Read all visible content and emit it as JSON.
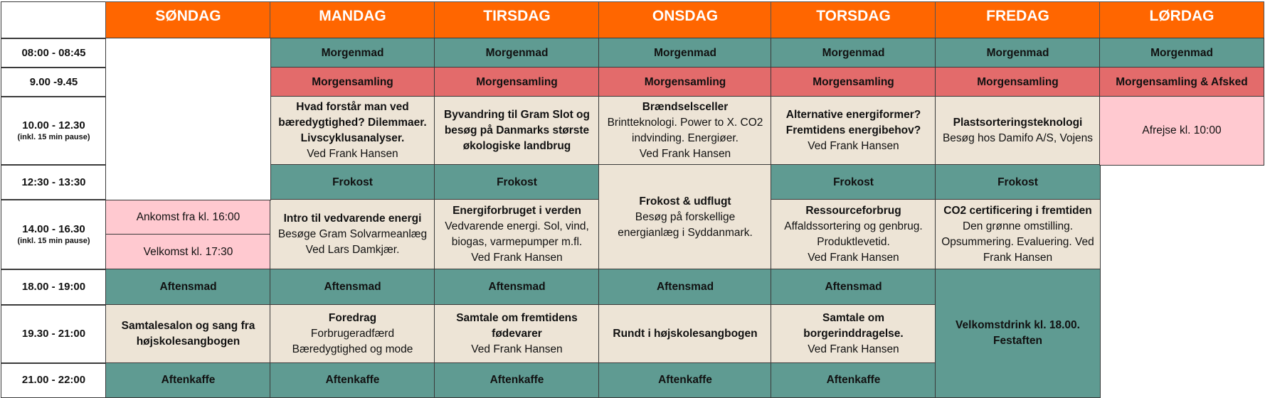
{
  "days": [
    "SØNDAG",
    "MANDAG",
    "TIRSDAG",
    "ONSDAG",
    "TORSDAG",
    "FREDAG",
    "LØRDAG"
  ],
  "times": [
    {
      "label": "08:00 - 08:45"
    },
    {
      "label": "9.00 -9.45"
    },
    {
      "label": "10.00 - 12.30",
      "note": "(inkl. 15 min pause)"
    },
    {
      "label": "12:30 - 13:30"
    },
    {
      "label": "14.00 - 16.30",
      "note": "(inkl. 15 min pause)"
    },
    {
      "label": "18.00 - 19:00"
    },
    {
      "label": "19.30 - 21:00"
    },
    {
      "label": "21.00 - 22:00"
    }
  ],
  "cells": [
    {
      "text": [
        "Ankomst fra kl. 16:00"
      ]
    },
    {
      "text": [
        "Velkomst kl. 17:30"
      ]
    },
    {
      "title": "Aftensmad"
    },
    {
      "title": "Samtalesalon og sang fra højskolesangbogen"
    },
    {
      "title": "Aftenkaffe"
    },
    {
      "title": "Morgenmad"
    },
    {
      "title": "Morgensamling"
    },
    {
      "title": "Hvad forstår man ved bæredygtighed? Dilemmaer. Livscyklusanalyser.",
      "text": [
        "Ved Frank Hansen"
      ]
    },
    {
      "title": "Frokost"
    },
    {
      "title": "Intro til vedvarende energi",
      "text": [
        "Besøge Gram Solvarmeanlæg",
        "Ved Lars Damkjær."
      ]
    },
    {
      "title": "Aftensmad"
    },
    {
      "title": "Foredrag",
      "text": [
        "Forbrugeradfærd",
        "Bæredygtighed og mode"
      ]
    },
    {
      "title": "Aftenkaffe"
    },
    {
      "title": "Morgenmad"
    },
    {
      "title": "Morgensamling"
    },
    {
      "title": "Byvandring til Gram Slot og besøg på Danmarks største økologiske landbrug"
    },
    {
      "title": "Frokost"
    },
    {
      "title": "Energiforbruget i verden",
      "text": [
        "Vedvarende energi. Sol, vind, biogas, varmepumper m.fl.",
        "Ved Frank Hansen"
      ]
    },
    {
      "title": "Aftensmad"
    },
    {
      "title": "Samtale om fremtidens fødevarer",
      "text": [
        "Ved Frank Hansen"
      ]
    },
    {
      "title": "Aftenkaffe"
    },
    {
      "title": "Morgenmad"
    },
    {
      "title": "Morgensamling"
    },
    {
      "title": "Brændselsceller",
      "text": [
        "Brintteknologi. Power to X. CO2 indvinding. Energiøer.",
        "Ved Frank Hansen"
      ]
    },
    {
      "title": "Frokost & udflugt",
      "text": [
        "Besøg på forskellige energianlæg i Syddanmark."
      ]
    },
    {
      "title": "Aftensmad"
    },
    {
      "title": "Rundt i højskolesangbogen"
    },
    {
      "title": "Aftenkaffe"
    },
    {
      "title": "Morgenmad"
    },
    {
      "title": "Morgensamling"
    },
    {
      "title": "Alternative energiformer? Fremtidens energibehov?",
      "text": [
        "Ved Frank Hansen"
      ]
    },
    {
      "title": "Frokost"
    },
    {
      "title": "Ressourceforbrug",
      "text": [
        "Affaldssortering og genbrug. Produktlevetid.",
        "Ved Frank Hansen"
      ]
    },
    {
      "title": "Aftensmad"
    },
    {
      "title": "Samtale om borgerinddragelse.",
      "text": [
        "Ved Frank Hansen"
      ]
    },
    {
      "title": "Aftenkaffe"
    },
    {
      "title": "Morgenmad"
    },
    {
      "title": "Morgensamling"
    },
    {
      "title": "Plastsorteringsteknologi",
      "text": [
        "Besøg hos Damifo A/S, Vojens"
      ]
    },
    {
      "title": "Frokost"
    },
    {
      "title": "CO2 certificering i fremtiden",
      "text": [
        "Den grønne omstilling. Opsummering. Evaluering. Ved Frank Hansen"
      ]
    },
    {
      "title": "Velkomstdrink kl. 18.00. Festaften"
    },
    {
      "title": "Morgenmad"
    },
    {
      "title": "Morgensamling & Afsked"
    },
    {
      "text": [
        "Afrejse kl. 10:00"
      ]
    }
  ]
}
